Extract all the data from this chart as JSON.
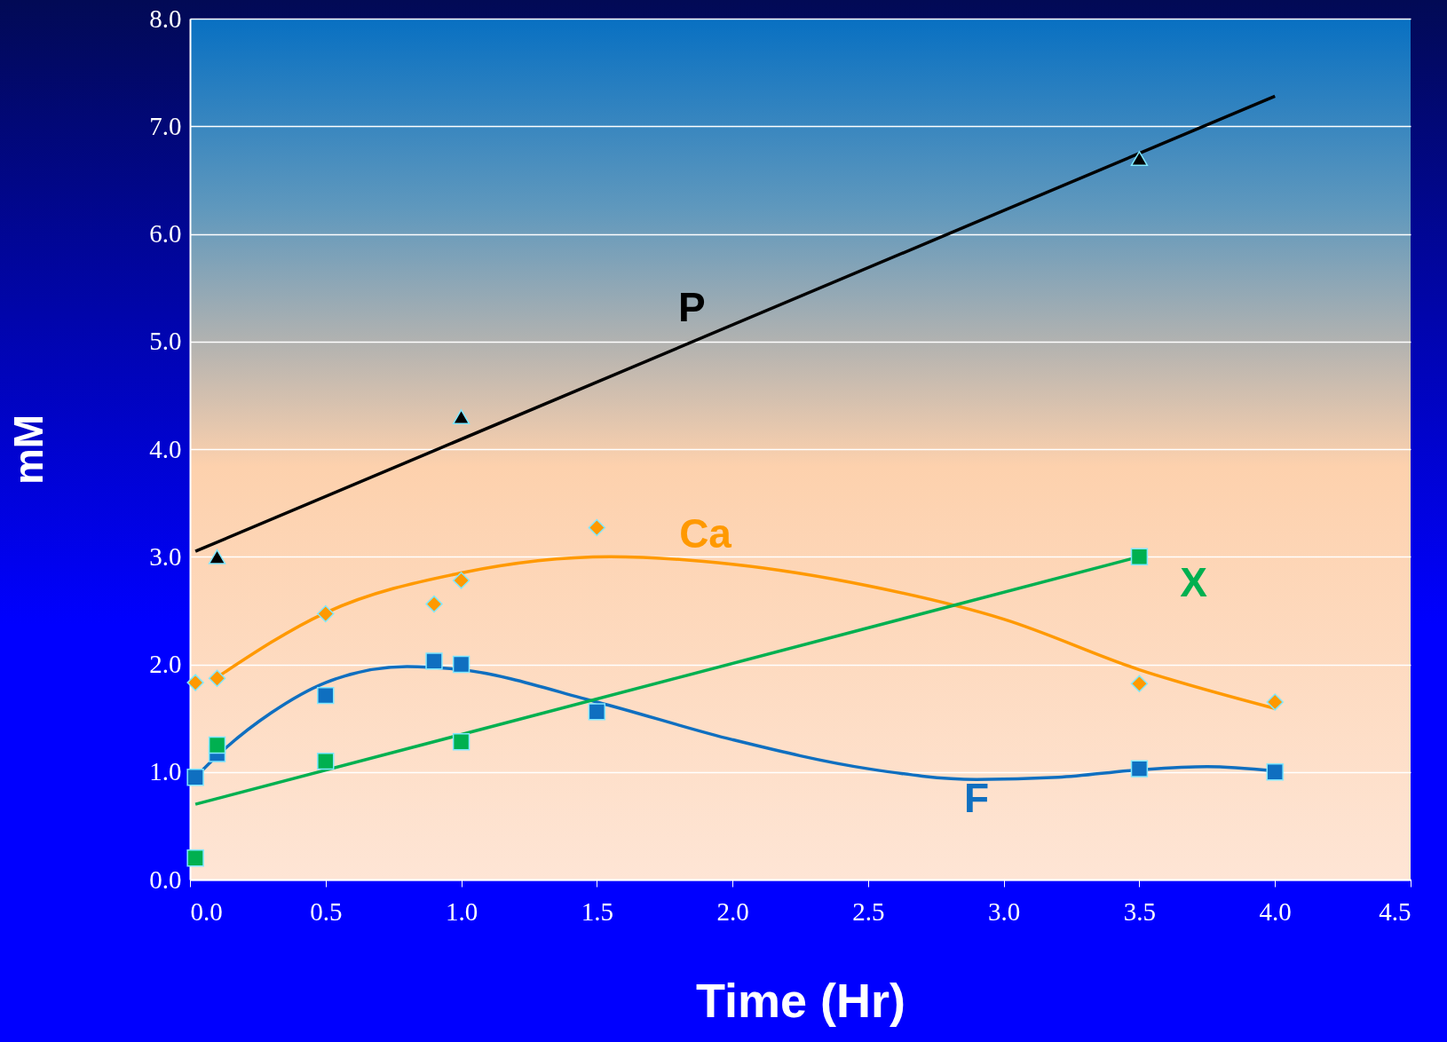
{
  "chart_data": {
    "type": "scatter",
    "xlabel": "Time (Hr)",
    "ylabel": "mM",
    "xlim": [
      0,
      4.5
    ],
    "ylim": [
      0,
      8
    ],
    "xticks": [
      {
        "value": 0,
        "label": "0.0"
      },
      {
        "value": 0.5,
        "label": "0.5"
      },
      {
        "value": 1,
        "label": "1.0"
      },
      {
        "value": 1.5,
        "label": "1.5"
      },
      {
        "value": 2,
        "label": "2.0"
      },
      {
        "value": 2.5,
        "label": "2.5"
      },
      {
        "value": 3,
        "label": "3.0"
      },
      {
        "value": 3.5,
        "label": "3.5"
      },
      {
        "value": 4,
        "label": "4.0"
      },
      {
        "value": 4.5,
        "label": "4.5"
      }
    ],
    "yticks": [
      {
        "value": 0,
        "label": "0.0"
      },
      {
        "value": 1,
        "label": "1.0"
      },
      {
        "value": 2,
        "label": "2.0"
      },
      {
        "value": 3,
        "label": "3.0"
      },
      {
        "value": 4,
        "label": "4.0"
      },
      {
        "value": 5,
        "label": "5.0"
      },
      {
        "value": 6,
        "label": "6.0"
      },
      {
        "value": 7,
        "label": "7.0"
      },
      {
        "value": 8,
        "label": "8.0"
      }
    ],
    "grid": "y",
    "series": [
      {
        "type": "line",
        "color": "#000000",
        "x": [
          0.02,
          4.0
        ],
        "values": [
          3.05,
          7.28
        ]
      },
      {
        "type": "line",
        "color": "#ff9900",
        "x": [
          0.1,
          0.5,
          1.0,
          1.55,
          2.0,
          2.5,
          3.0,
          3.5,
          4.0
        ],
        "values": [
          1.88,
          2.48,
          2.85,
          3.0,
          2.93,
          2.73,
          2.42,
          1.95,
          1.59
        ]
      },
      {
        "type": "line",
        "color": "#0f6fc0",
        "x": [
          0.02,
          0.1,
          0.3,
          0.5,
          0.8,
          1.0,
          1.5,
          2.0,
          2.5,
          2.9,
          3.2,
          3.5,
          3.75,
          4.0
        ],
        "values": [
          0.95,
          1.15,
          1.55,
          1.83,
          1.98,
          1.95,
          1.65,
          1.3,
          1.03,
          0.93,
          0.95,
          1.02,
          1.05,
          1.01
        ]
      },
      {
        "type": "line",
        "color": "#00b050",
        "x": [
          0.02,
          3.5
        ],
        "values": [
          0.7,
          3.0
        ]
      },
      {
        "name": "P",
        "marker": "triangle",
        "color": "#000000",
        "x": [
          0.1,
          1.0,
          3.5
        ],
        "values": [
          3.0,
          4.3,
          6.7
        ]
      },
      {
        "name": "Ca",
        "marker": "diamond",
        "color": "#ff9900",
        "x": [
          0.02,
          0.1,
          0.5,
          0.9,
          1.0,
          1.5,
          3.5,
          4.0
        ],
        "values": [
          1.83,
          1.87,
          2.47,
          2.56,
          2.78,
          3.27,
          1.82,
          1.65
        ]
      },
      {
        "name": "F",
        "marker": "square",
        "color": "#0f6fc0",
        "x": [
          0.02,
          0.1,
          0.5,
          0.9,
          1.0,
          1.5,
          3.5,
          4.0
        ],
        "values": [
          0.95,
          1.17,
          1.71,
          2.03,
          2.0,
          1.56,
          1.03,
          1.0
        ]
      },
      {
        "name": "X",
        "marker": "square",
        "color": "#00b050",
        "x": [
          0.02,
          0.1,
          0.5,
          1.0,
          3.5
        ],
        "values": [
          0.2,
          1.25,
          1.1,
          1.28,
          3.0
        ]
      }
    ]
  }
}
